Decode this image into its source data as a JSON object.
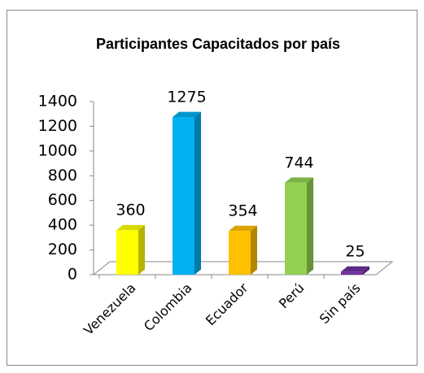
{
  "chart_data": {
    "type": "bar3d",
    "title": "Participantes Capacitados  por país",
    "categories": [
      "Venezuela",
      "Colombia",
      "Ecuador",
      "Perú",
      "Sin país"
    ],
    "values": [
      360,
      1275,
      354,
      744,
      25
    ],
    "colors": [
      "#ffff00",
      "#00b0f0",
      "#ffc000",
      "#92d050",
      "#7030a0"
    ],
    "ylim": [
      0,
      1400
    ],
    "yticks": [
      0,
      200,
      400,
      600,
      800,
      1000,
      1200,
      1400
    ],
    "grid": false
  }
}
